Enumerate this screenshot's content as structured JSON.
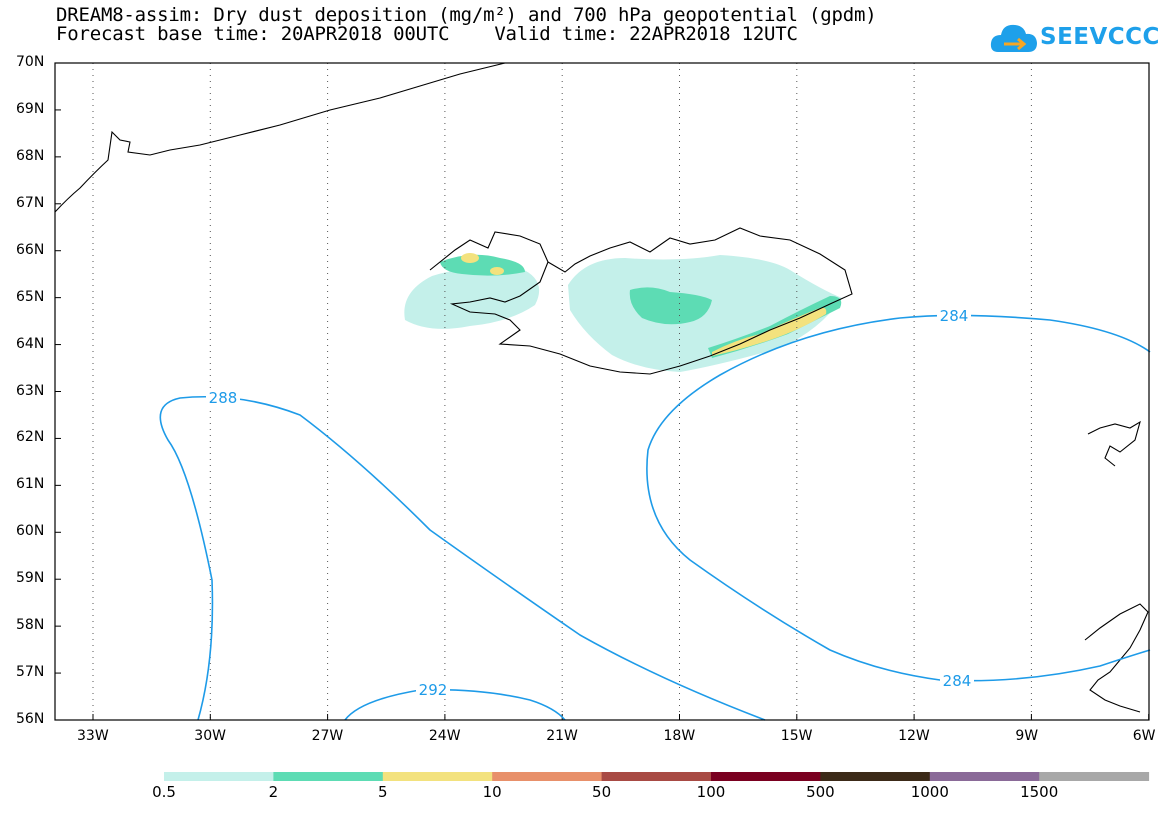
{
  "title": {
    "line1": "DREAM8-assim: Dry dust deposition (mg/m²) and 700 hPa geopotential (gpdm)",
    "line2": "Forecast base time: 20APR2018 00UTC    Valid time: 22APR2018 12UTC"
  },
  "logo": {
    "text": "SEEVCCC",
    "icon": "cloud-icon",
    "color": "#1ea0ea"
  },
  "map": {
    "lat_labels": [
      "70N",
      "69N",
      "68N",
      "67N",
      "66N",
      "65N",
      "64N",
      "63N",
      "62N",
      "61N",
      "60N",
      "59N",
      "58N",
      "57N",
      "56N"
    ],
    "lon_labels": [
      "33W",
      "30W",
      "27W",
      "24W",
      "21W",
      "18W",
      "15W",
      "12W",
      "9W",
      "6W"
    ],
    "contour_color": "#1e9be8",
    "contour_labels": [
      {
        "id": "c288",
        "text": "288"
      },
      {
        "id": "c292",
        "text": "292"
      },
      {
        "id": "c284a",
        "text": "284"
      },
      {
        "id": "c284b",
        "text": "284"
      }
    ]
  },
  "colorbar": {
    "labels": [
      "0.5",
      "2",
      "5",
      "10",
      "50",
      "100",
      "500",
      "1000",
      "1500"
    ],
    "colors": [
      "#c4f0ea",
      "#5ddcb4",
      "#f3e27e",
      "#e8906a",
      "#a84a44",
      "#7a0020",
      "#3c2a18",
      "#8a6a98",
      "#a8a8a8"
    ]
  }
}
